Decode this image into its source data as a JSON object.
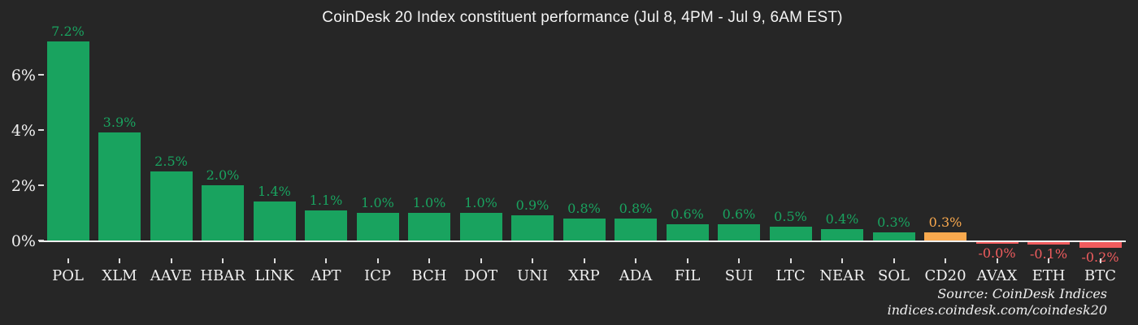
{
  "chart": {
    "title": "CoinDesk 20 Index constituent performance (Jul 8, 4PM - Jul 9, 6AM EST)"
  },
  "chart_data": {
    "type": "bar",
    "title": "CoinDesk 20 Index constituent performance (Jul 8, 4PM - Jul 9, 6AM EST)",
    "categories": [
      "POL",
      "XLM",
      "AAVE",
      "HBAR",
      "LINK",
      "APT",
      "ICP",
      "BCH",
      "DOT",
      "UNI",
      "XRP",
      "ADA",
      "FIL",
      "SUI",
      "LTC",
      "NEAR",
      "SOL",
      "CD20",
      "AVAX",
      "ETH",
      "BTC"
    ],
    "values": [
      7.2,
      3.9,
      2.5,
      2.0,
      1.4,
      1.1,
      1.0,
      1.0,
      1.0,
      0.9,
      0.8,
      0.8,
      0.6,
      0.6,
      0.5,
      0.4,
      0.3,
      0.3,
      -0.0,
      -0.1,
      -0.2
    ],
    "value_labels": [
      "7.2%",
      "3.9%",
      "2.5%",
      "2.0%",
      "1.4%",
      "1.1%",
      "1.0%",
      "1.0%",
      "1.0%",
      "0.9%",
      "0.8%",
      "0.8%",
      "0.6%",
      "0.6%",
      "0.5%",
      "0.4%",
      "0.3%",
      "0.3%",
      "-0.0%",
      "-0.1%",
      "-0.2%"
    ],
    "bar_color_keys": [
      "positive",
      "positive",
      "positive",
      "positive",
      "positive",
      "positive",
      "positive",
      "positive",
      "positive",
      "positive",
      "positive",
      "positive",
      "positive",
      "positive",
      "positive",
      "positive",
      "positive",
      "index",
      "negative",
      "negative",
      "negative"
    ],
    "xlabel": "",
    "ylabel": "",
    "y_ticks": [
      {
        "label": "0%",
        "value": 0
      },
      {
        "label": "2%",
        "value": 2
      },
      {
        "label": "4%",
        "value": 4
      },
      {
        "label": "6%",
        "value": 6
      }
    ],
    "ylim": [
      -0.8,
      7.6
    ],
    "grid": false,
    "legend": false
  },
  "colors": {
    "background": "#262626",
    "positive": "#19a35f",
    "index": "#f9a94e",
    "negative": "#f05c5e",
    "axis": "#efefef",
    "text": "#f0f0f0"
  },
  "source": {
    "line1": "Source: CoinDesk Indices",
    "line2": "indices.coindesk.com/coindesk20"
  }
}
